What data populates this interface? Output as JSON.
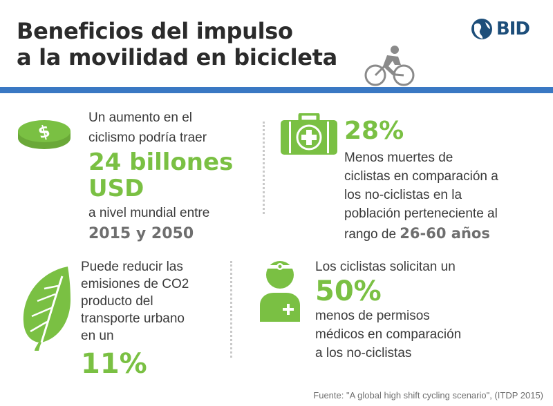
{
  "header": {
    "title_line1": "Beneficios del impulso",
    "title_line2": "a la movilidad en bicicleta",
    "logo_text": "BID",
    "accent_color": "#3a78c3"
  },
  "colors": {
    "green": "#7ac043",
    "dark_text": "#3a3a3a",
    "grey_text": "#6e6e6e"
  },
  "panel1": {
    "icon": "coin-dollar-icon",
    "line1": "Un aumento en el",
    "line2": "ciclismo podría traer",
    "big1": "24 billones",
    "big2": "USD",
    "line3": "a nivel mundial entre",
    "years": "2015 y 2050"
  },
  "panel2": {
    "icon": "first-aid-kit-icon",
    "big": "28%",
    "line1": "Menos muertes de",
    "line2": "ciclistas en comparación a",
    "line3": "los no-ciclistas en la",
    "line4": "población perteneciente al",
    "line5_prefix": "rango de",
    "age_range": "26-60 años"
  },
  "panel3": {
    "icon": "leaf-icon",
    "line1": "Puede reducir las",
    "line2": "emisiones de CO2",
    "line3": "producto del",
    "line4": "transporte urbano",
    "line5": "en un",
    "big": "11%"
  },
  "panel4": {
    "icon": "doctor-icon",
    "line1": "Los ciclistas solicitan un",
    "big": "50%",
    "line2": "menos de permisos",
    "line3": "médicos en comparación",
    "line4": "a los no-ciclistas"
  },
  "source": "Fuente: \"A global high shift cycling scenario\", (ITDP 2015)"
}
